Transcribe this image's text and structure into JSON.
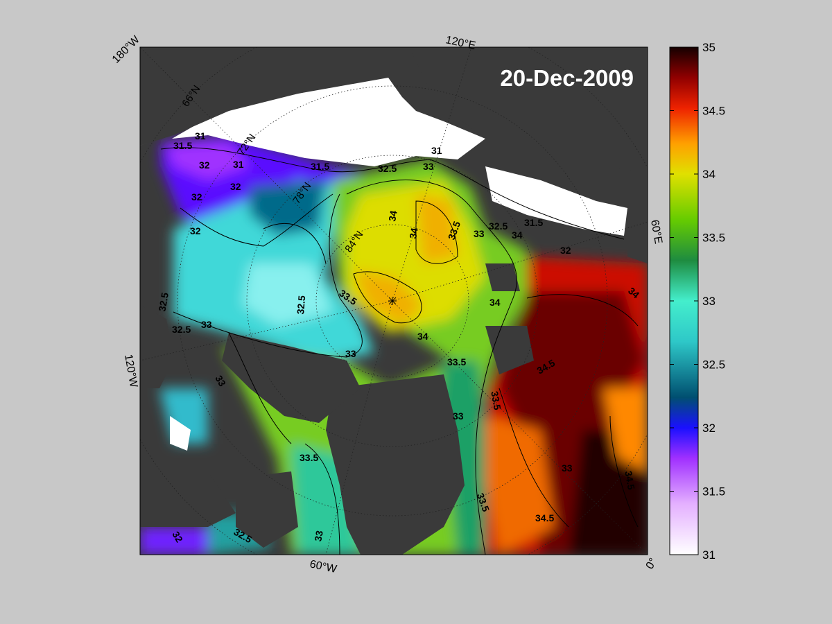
{
  "map": {
    "date": "20-Dec-2009",
    "edge_labels": {
      "top_left": "180°W",
      "top": "120°E",
      "right": "60°E",
      "left": "120°W",
      "bottom": "60°W",
      "bottom_right": "0°"
    },
    "latitude_labels": [
      "66°N",
      "72°N",
      "78°N",
      "84°N"
    ],
    "contour_labels": [
      "31",
      "31.5",
      "32",
      "32.5",
      "33",
      "33.5",
      "34",
      "34.5"
    ]
  },
  "colorbar": {
    "min": 31,
    "max": 35,
    "ticks": [
      "35",
      "34.5",
      "34",
      "33.5",
      "33",
      "32.5",
      "32",
      "31.5",
      "31"
    ]
  },
  "colors": {
    "background": "#c8c8c8",
    "land": "#3a3a3a",
    "ice": "#ffffff",
    "scale": [
      "#ffffff",
      "#dd88ff",
      "#8800ff",
      "#2200ff",
      "#005577",
      "#33cccc",
      "#77ffee",
      "#33bb66",
      "#007722",
      "#88dd00",
      "#dddd00",
      "#ffaa00",
      "#ff4400",
      "#cc0000",
      "#550000",
      "#1a0000"
    ]
  }
}
